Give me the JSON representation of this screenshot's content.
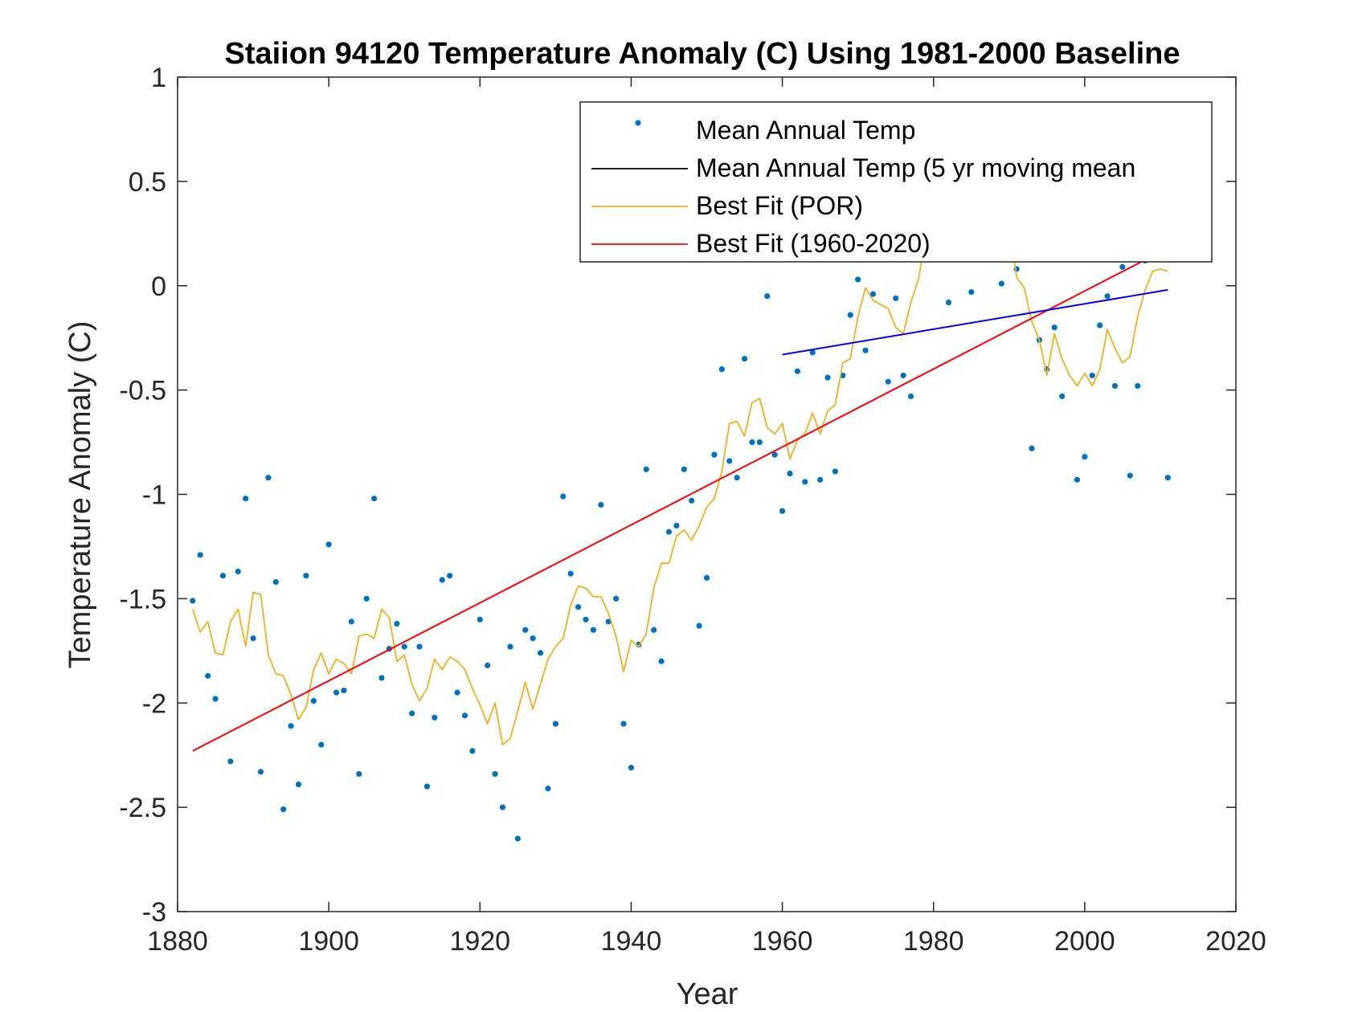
{
  "chart_data": {
    "type": "scatter",
    "title": "Staiion 94120 Temperature Anomaly (C) Using 1981-2000 Baseline",
    "xlabel": "Year",
    "ylabel": "Temperature Anomaly (C)",
    "xlim": [
      1880,
      2020
    ],
    "ylim": [
      -3,
      1
    ],
    "xticks": [
      1880,
      1900,
      1920,
      1940,
      1960,
      1980,
      2000,
      2020
    ],
    "yticks": [
      -3,
      -2.5,
      -2,
      -1.5,
      -1,
      -0.5,
      0,
      0.5,
      1
    ],
    "grid": false,
    "legend_position": "top-right",
    "legend": [
      {
        "label": "Mean Annual Temp",
        "style": "dots",
        "color": "#0072BD"
      },
      {
        "label": "Mean Annual Temp (5 yr moving mean",
        "style": "line",
        "color": "#000000"
      },
      {
        "label": "Best Fit (POR)",
        "style": "line",
        "color": "#EDB120"
      },
      {
        "label": "Best Fit (1960-2020)",
        "style": "line",
        "color": "#FF0000"
      }
    ],
    "series": [
      {
        "name": "Mean Annual Temp",
        "style": "dots",
        "color": "#0072BD",
        "x": [
          1882,
          1883,
          1884,
          1885,
          1886,
          1887,
          1888,
          1889,
          1890,
          1891,
          1892,
          1893,
          1894,
          1895,
          1896,
          1897,
          1898,
          1899,
          1900,
          1901,
          1902,
          1903,
          1904,
          1905,
          1906,
          1907,
          1908,
          1909,
          1910,
          1911,
          1912,
          1913,
          1914,
          1915,
          1916,
          1917,
          1918,
          1919,
          1920,
          1921,
          1922,
          1923,
          1924,
          1925,
          1926,
          1927,
          1928,
          1929,
          1930,
          1931,
          1932,
          1933,
          1934,
          1935,
          1936,
          1937,
          1938,
          1939,
          1940,
          1941,
          1942,
          1943,
          1944,
          1945,
          1946,
          1947,
          1948,
          1949,
          1950,
          1951,
          1952,
          1953,
          1954,
          1955,
          1956,
          1957,
          1958,
          1959,
          1960,
          1961,
          1962,
          1963,
          1964,
          1965,
          1966,
          1967,
          1968,
          1969,
          1970,
          1971,
          1972,
          1974,
          1975,
          1976,
          1977,
          1982,
          1985,
          1989,
          1991,
          1993,
          1994,
          1995,
          1996,
          1997,
          1999,
          2000,
          2001,
          2002,
          2003,
          2004,
          2005,
          2006,
          2007,
          2008,
          2011
        ],
        "y": [
          -1.51,
          -1.29,
          -1.87,
          -1.98,
          -1.39,
          -2.28,
          -1.37,
          -1.02,
          -1.69,
          -2.33,
          -0.92,
          -1.42,
          -2.51,
          -2.11,
          -2.39,
          -1.39,
          -1.99,
          -2.2,
          -1.24,
          -1.95,
          -1.94,
          -1.61,
          -2.34,
          -1.5,
          -1.02,
          -1.88,
          -1.74,
          -1.62,
          -1.73,
          -2.05,
          -1.73,
          -2.4,
          -2.07,
          -1.41,
          -1.39,
          -1.95,
          -2.06,
          -2.23,
          -1.6,
          -1.82,
          -2.34,
          -2.5,
          -1.73,
          -2.65,
          -1.65,
          -1.69,
          -1.76,
          -2.41,
          -2.1,
          -1.01,
          -1.38,
          -1.54,
          -1.6,
          -1.65,
          -1.05,
          -1.61,
          -1.5,
          -2.1,
          -2.31,
          -1.72,
          -0.88,
          -1.65,
          -1.8,
          -1.18,
          -1.15,
          -0.88,
          -1.03,
          -1.63,
          -1.4,
          -0.81,
          -0.4,
          -0.84,
          -0.92,
          -0.35,
          -0.75,
          -0.75,
          -0.05,
          -0.81,
          -1.08,
          -0.9,
          -0.41,
          -0.94,
          -0.32,
          -0.93,
          -0.44,
          -0.89,
          -0.43,
          -0.14,
          0.03,
          -0.31,
          -0.04,
          -0.46,
          -0.06,
          -0.43,
          -0.53,
          -0.08,
          -0.03,
          0.01,
          0.08,
          -0.78,
          -0.26,
          -0.4,
          -0.2,
          -0.53,
          -0.93,
          -0.82,
          -0.43,
          -0.19,
          -0.05,
          -0.48,
          0.09,
          -0.91,
          -0.48,
          0.12,
          -0.92
        ]
      },
      {
        "name": "Best Fit (POR)",
        "style": "line",
        "color": "#EDB120",
        "x": [
          1882,
          1883,
          1884,
          1885,
          1886,
          1887,
          1888,
          1889,
          1890,
          1891,
          1892,
          1893,
          1894,
          1895,
          1896,
          1897,
          1898,
          1899,
          1900,
          1901,
          1902,
          1903,
          1904,
          1905,
          1906,
          1907,
          1908,
          1909,
          1910,
          1911,
          1912,
          1913,
          1914,
          1915,
          1916,
          1917,
          1918,
          1919,
          1920,
          1921,
          1922,
          1923,
          1924,
          1925,
          1926,
          1927,
          1928,
          1929,
          1930,
          1931,
          1932,
          1933,
          1934,
          1935,
          1936,
          1937,
          1938,
          1939,
          1940,
          1941,
          1942,
          1943,
          1944,
          1945,
          1946,
          1947,
          1948,
          1949,
          1950,
          1951,
          1952,
          1953,
          1954,
          1955,
          1956,
          1957,
          1958,
          1959,
          1960,
          1961,
          1962,
          1963,
          1964,
          1965,
          1966,
          1967,
          1968,
          1969,
          1970,
          1971,
          1972,
          1973,
          1974,
          1975,
          1976,
          1977,
          1978,
          1979,
          1990,
          1991,
          1992,
          1993,
          1994,
          1995,
          1996,
          1997,
          1998,
          1999,
          2000,
          2001,
          2002,
          2003,
          2004,
          2005,
          2006,
          2007,
          2008,
          2009,
          2010,
          2011
        ],
        "y": [
          -1.55,
          -1.66,
          -1.61,
          -1.76,
          -1.77,
          -1.61,
          -1.55,
          -1.73,
          -1.47,
          -1.48,
          -1.77,
          -1.86,
          -1.87,
          -1.96,
          -2.08,
          -2.02,
          -1.84,
          -1.76,
          -1.86,
          -1.79,
          -1.81,
          -1.86,
          -1.68,
          -1.67,
          -1.69,
          -1.55,
          -1.59,
          -1.8,
          -1.77,
          -1.91,
          -1.99,
          -1.93,
          -1.79,
          -1.84,
          -1.78,
          -1.8,
          -1.84,
          -1.93,
          -2.01,
          -2.1,
          -2.0,
          -2.2,
          -2.17,
          -2.04,
          -1.9,
          -2.03,
          -1.91,
          -1.79,
          -1.73,
          -1.69,
          -1.53,
          -1.44,
          -1.45,
          -1.49,
          -1.49,
          -1.57,
          -1.68,
          -1.85,
          -1.7,
          -1.73,
          -1.67,
          -1.45,
          -1.33,
          -1.33,
          -1.2,
          -1.17,
          -1.22,
          -1.15,
          -1.06,
          -1.02,
          -0.89,
          -0.66,
          -0.65,
          -0.72,
          -0.56,
          -0.54,
          -0.68,
          -0.71,
          -0.66,
          -0.83,
          -0.74,
          -0.71,
          -0.61,
          -0.71,
          -0.6,
          -0.57,
          -0.37,
          -0.35,
          -0.15,
          -0.01,
          -0.07,
          -0.09,
          -0.11,
          -0.2,
          -0.23,
          -0.08,
          0.03,
          0.24,
          0.29,
          0.04,
          -0.01,
          -0.17,
          -0.26,
          -0.43,
          -0.23,
          -0.35,
          -0.43,
          -0.48,
          -0.42,
          -0.48,
          -0.4,
          -0.21,
          -0.3,
          -0.37,
          -0.34,
          -0.15,
          -0.02,
          0.07,
          0.08,
          0.07
        ]
      },
      {
        "name": "Best Fit (1960-2020)",
        "style": "line",
        "color": "#FF0000",
        "x": [
          1882,
          2011
        ],
        "y": [
          -2.23,
          0.18
        ]
      },
      {
        "name": "",
        "style": "line",
        "color": "#0000FF",
        "x": [
          1960,
          2011
        ],
        "y": [
          -0.33,
          -0.02
        ]
      }
    ]
  }
}
